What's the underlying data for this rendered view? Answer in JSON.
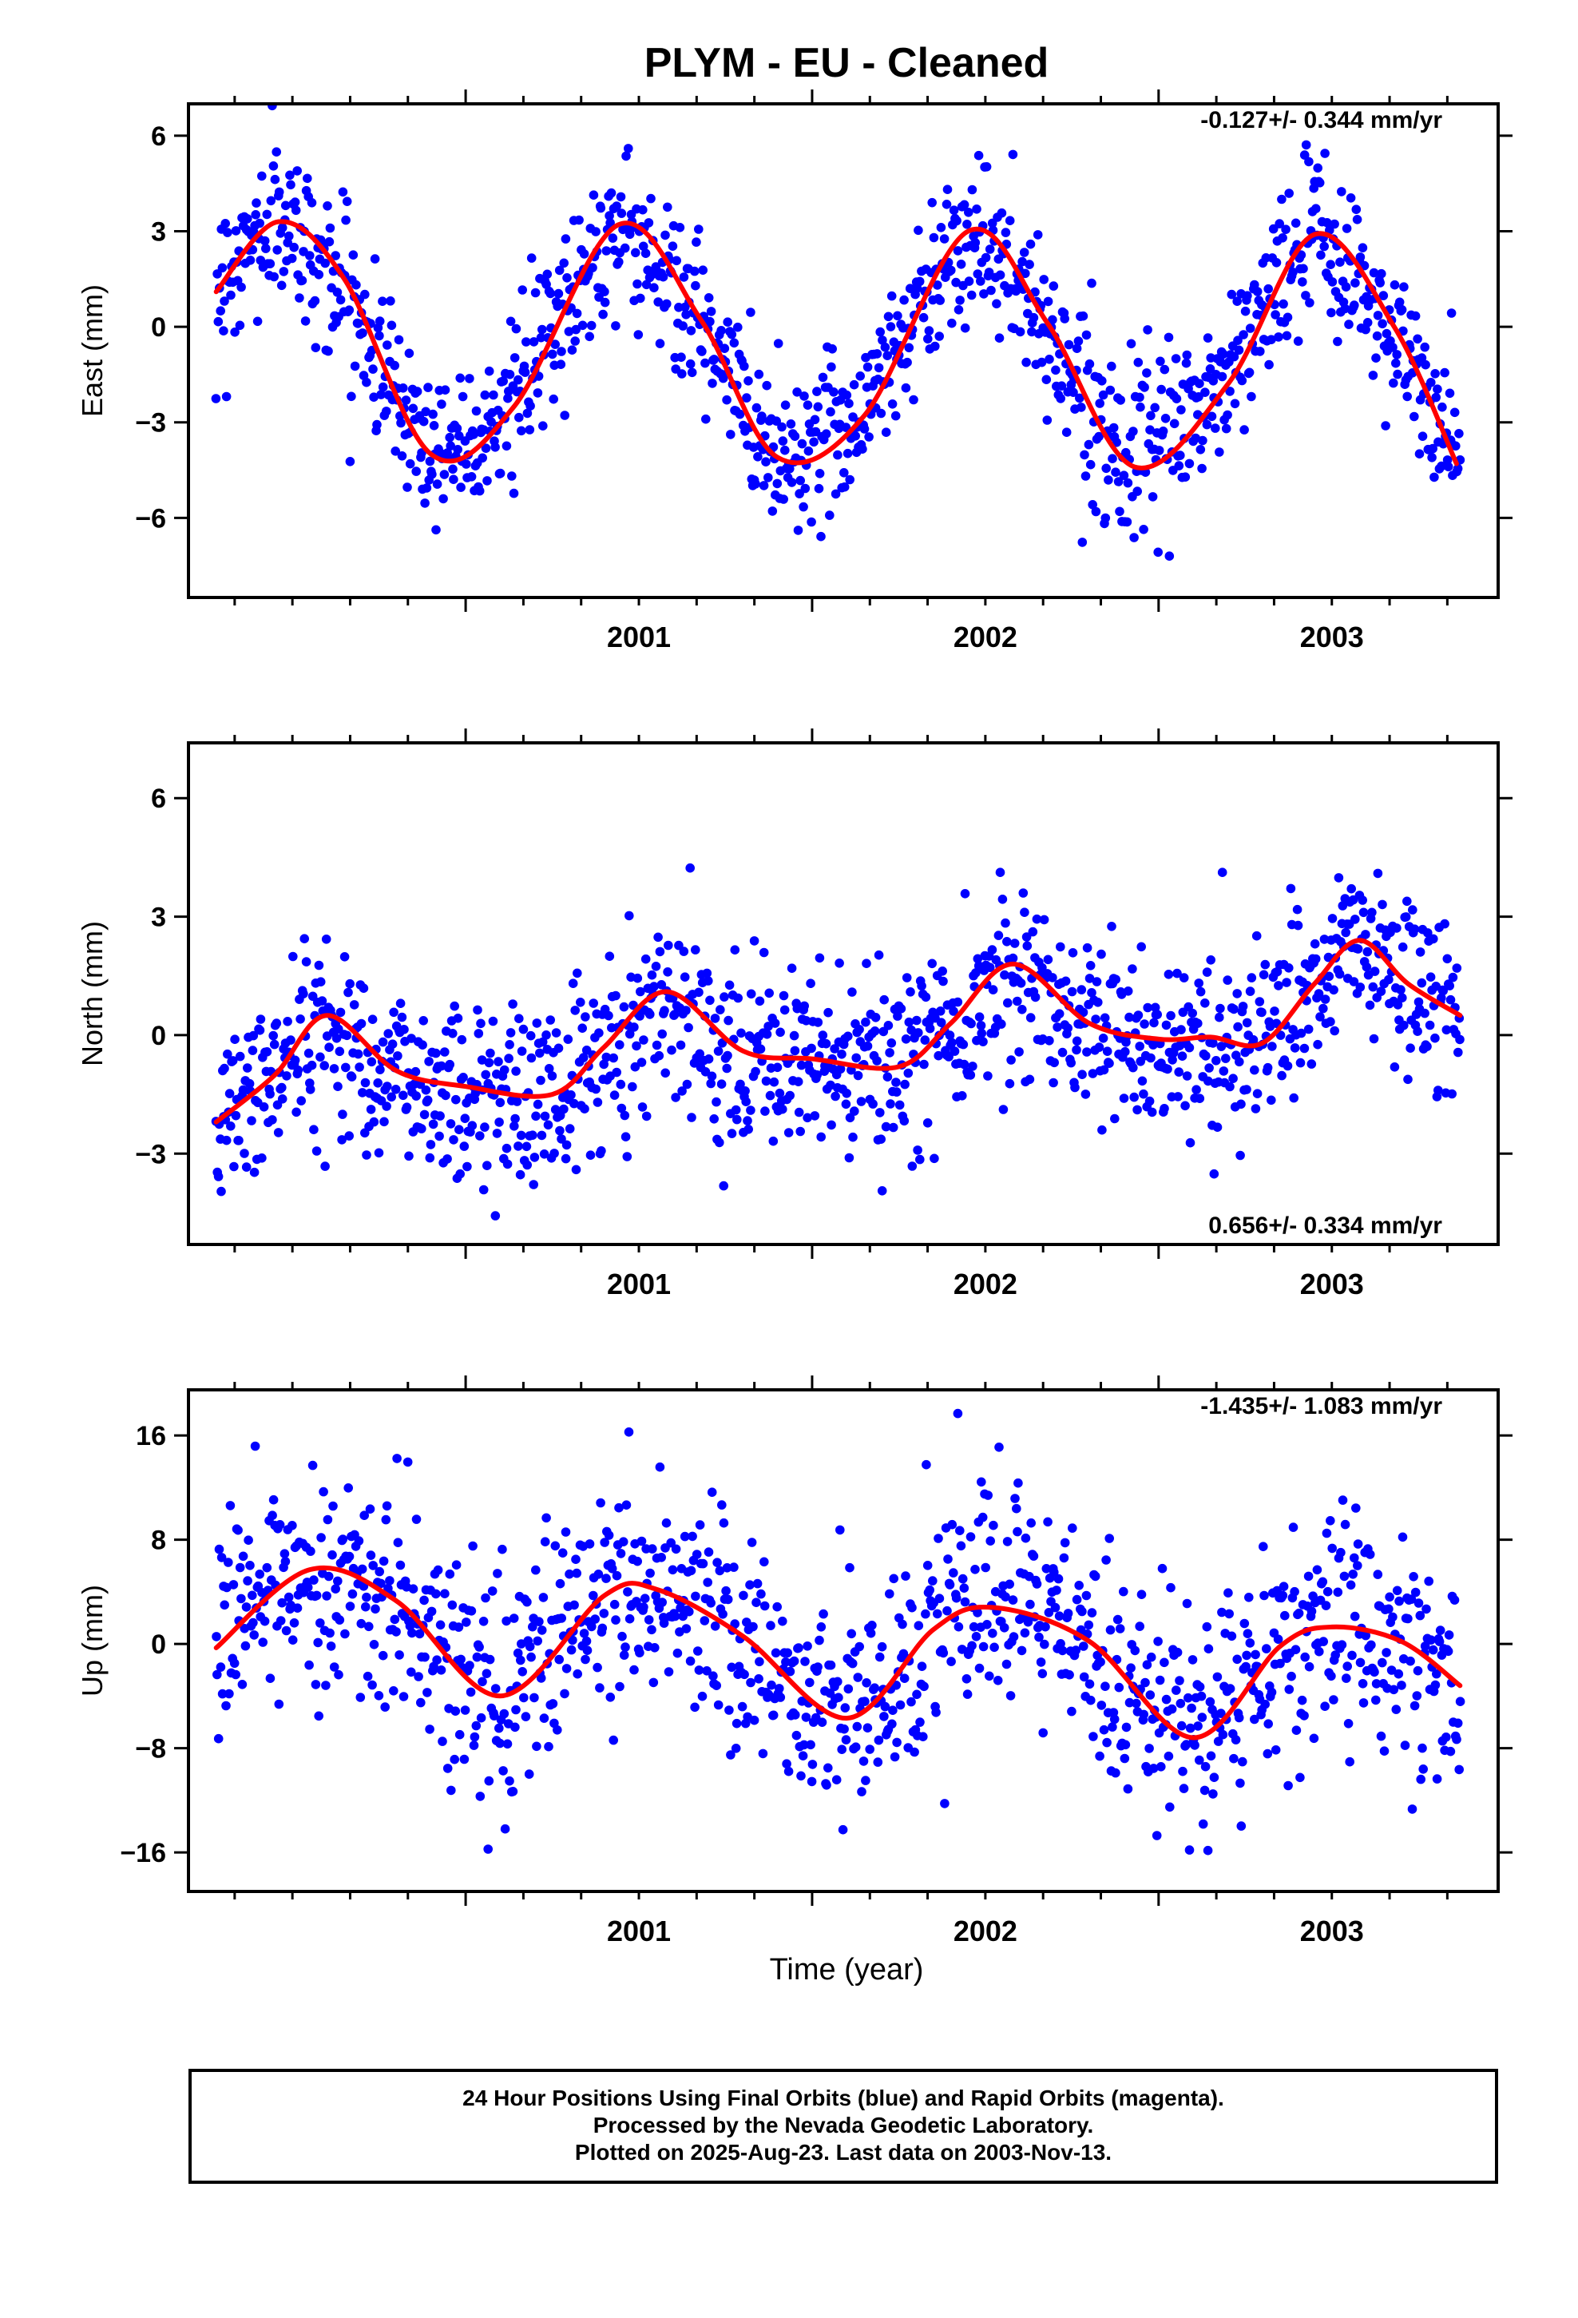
{
  "title": "PLYM  - EU - Cleaned",
  "xlabel": "Time (year)",
  "colors": {
    "final_orbits": "#0000ff",
    "fit_line": "#ff0000",
    "frame": "#000000"
  },
  "footer": {
    "line1": "24 Hour Positions Using Final Orbits (blue) and Rapid Orbits (magenta).",
    "line2": "Processed by the Nevada Geodetic Laboratory.",
    "line3": "Plotted on 2025-Aug-23. Last data on 2003-Nov-13."
  },
  "chart_data": [
    {
      "type": "scatter",
      "component": "East",
      "ylabel": "East (mm)",
      "rate_label": "-0.127+/- 0.344 mm/yr",
      "xlim": [
        2000.2,
        2003.98
      ],
      "ylim": [
        -8.5,
        7
      ],
      "yticks": [
        6,
        3,
        0,
        -3,
        -6
      ],
      "ytick_labels": [
        "6",
        "3",
        "0",
        "−3",
        "−6"
      ],
      "xticks": [
        2001,
        2002,
        2003
      ],
      "xtick_labels": [
        "2001",
        "2002",
        "2003"
      ],
      "series": [
        {
          "kind": "points",
          "x_start": 2000.28,
          "x_end": 2003.87,
          "n": 1200,
          "model": {
            "mean": -0.5,
            "trend_mm_per_yr": -0.127,
            "annual_amp": 3.6,
            "annual_phase_yr": 0.44,
            "semiannual_amp": 0.35,
            "noise_sd": 1.25
          }
        },
        {
          "kind": "fit",
          "x": [
            2000.28,
            2000.46,
            2000.65,
            2000.9,
            2001.14,
            2001.44,
            2001.68,
            2001.9,
            2002.15,
            2002.45,
            2002.68,
            2002.93,
            2003.2,
            2003.45,
            2003.68,
            2003.86
          ],
          "y": [
            1.1,
            3.3,
            1.5,
            -4.0,
            -2.5,
            3.2,
            0.2,
            -4.1,
            -2.8,
            3.0,
            0.1,
            -4.4,
            -1.8,
            2.9,
            0.0,
            -4.3
          ]
        }
      ]
    },
    {
      "type": "scatter",
      "component": "North",
      "ylabel": "North (mm)",
      "rate_label": "0.656+/- 0.334 mm/yr",
      "xlim": [
        2000.2,
        2003.98
      ],
      "ylim": [
        -5.3,
        7.4
      ],
      "yticks": [
        6,
        3,
        0,
        -3
      ],
      "ytick_labels": [
        "6",
        "3",
        "0",
        "−3"
      ],
      "xticks": [
        2001,
        2002,
        2003
      ],
      "xtick_labels": [
        "2001",
        "2002",
        "2003"
      ],
      "series": [
        {
          "kind": "points",
          "x_start": 2000.28,
          "x_end": 2003.87,
          "n": 1200,
          "model": {
            "mean": -0.6,
            "trend_mm_per_yr": 0.656,
            "annual_amp": 1.0,
            "annual_phase_yr": 0.58,
            "semiannual_amp": 0.3,
            "noise_sd": 1.15
          }
        },
        {
          "kind": "fit",
          "x": [
            2000.28,
            2000.45,
            2000.6,
            2000.8,
            2001.0,
            2001.25,
            2001.4,
            2001.58,
            2001.8,
            2002.0,
            2002.25,
            2002.4,
            2002.58,
            2002.8,
            2003.0,
            2003.15,
            2003.3,
            2003.45,
            2003.58,
            2003.72,
            2003.87
          ],
          "y": [
            -2.2,
            -1.0,
            0.5,
            -0.9,
            -1.3,
            -1.5,
            -0.3,
            1.1,
            -0.4,
            -0.6,
            -0.8,
            0.3,
            1.8,
            0.3,
            -0.1,
            -0.05,
            -0.2,
            1.3,
            2.4,
            1.3,
            0.5
          ]
        }
      ]
    },
    {
      "type": "scatter",
      "component": "Up",
      "ylabel": "Up (mm)",
      "rate_label": "-1.435+/- 1.083 mm/yr",
      "xlim": [
        2000.2,
        2003.98
      ],
      "ylim": [
        -19,
        19.5
      ],
      "yticks": [
        16,
        8,
        0,
        -8,
        -16
      ],
      "ytick_labels": [
        "16",
        "8",
        "0",
        "−8",
        "−16"
      ],
      "xticks": [
        2001,
        2002,
        2003
      ],
      "xtick_labels": [
        "2001",
        "2002",
        "2003"
      ],
      "series": [
        {
          "kind": "points",
          "x_start": 2000.28,
          "x_end": 2003.87,
          "n": 1150,
          "model": {
            "mean": -0.5,
            "trend_mm_per_yr": -1.435,
            "annual_amp": 5.2,
            "annual_phase_yr": 0.53,
            "semiannual_amp": 0.6,
            "noise_sd": 4.3
          }
        },
        {
          "kind": "fit",
          "x": [
            2000.28,
            2000.55,
            2000.8,
            2001.1,
            2001.4,
            2001.55,
            2001.8,
            2002.1,
            2002.35,
            2002.52,
            2002.8,
            2003.1,
            2003.35,
            2003.5,
            2003.7,
            2003.87
          ],
          "y": [
            -0.3,
            5.7,
            3.3,
            -4.0,
            3.7,
            4.2,
            0.6,
            -5.7,
            1.1,
            2.8,
            0.2,
            -7.2,
            -0.2,
            1.3,
            0.2,
            -3.2
          ]
        }
      ]
    }
  ]
}
